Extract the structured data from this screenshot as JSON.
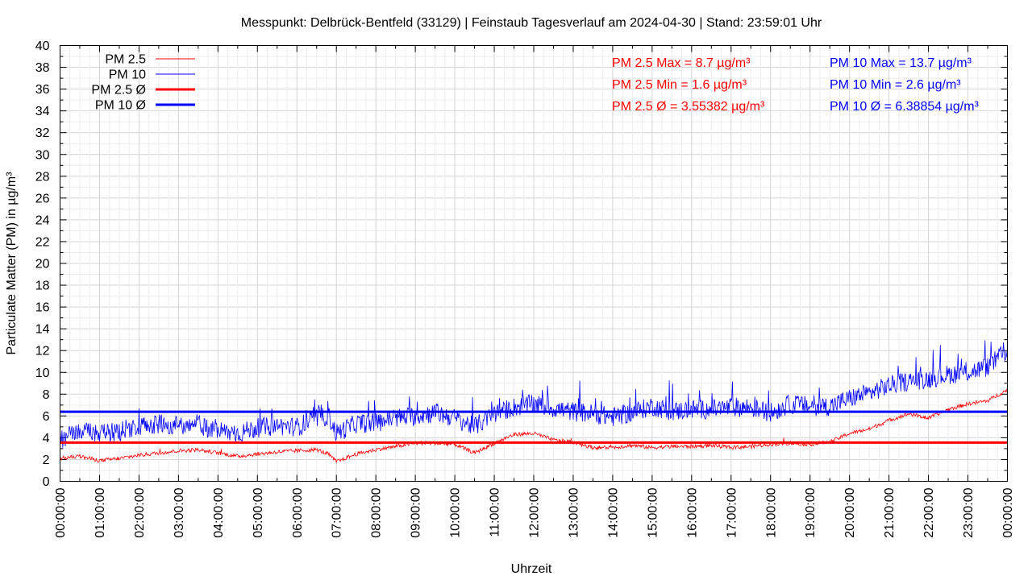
{
  "chart_data": {
    "type": "line",
    "title": "Messpunkt: Delbrück-Bentfeld (33129) | Feinstaub Tagesverlauf am 2024-04-30 | Stand: 23:59:01 Uhr",
    "xlabel": "Uhrzeit",
    "ylabel": "Particulate Matter (PM) in µg/m³",
    "ylim": [
      0,
      40
    ],
    "xlim": [
      "00:00:00",
      "24:00:00"
    ],
    "y_ticks": [
      "0",
      "2",
      "4",
      "6",
      "8",
      "10",
      "12",
      "14",
      "16",
      "18",
      "20",
      "22",
      "24",
      "26",
      "28",
      "30",
      "32",
      "34",
      "36",
      "38",
      "40"
    ],
    "x_ticks": [
      "00:00:00",
      "01:00:00",
      "02:00:00",
      "03:00:00",
      "04:00:00",
      "05:00:00",
      "06:00:00",
      "07:00:00",
      "08:00:00",
      "09:00:00",
      "10:00:00",
      "11:00:00",
      "12:00:00",
      "13:00:00",
      "14:00:00",
      "15:00:00",
      "16:00:00",
      "17:00:00",
      "18:00:00",
      "19:00:00",
      "20:00:00",
      "21:00:00",
      "22:00:00",
      "23:00:00",
      "00:00:00"
    ],
    "grid": true,
    "legend_position": "top-left",
    "legend": [
      {
        "label": "PM 2.5",
        "color": "#ff0000",
        "style": "thin"
      },
      {
        "label": "PM 10",
        "color": "#0000ff",
        "style": "thin"
      },
      {
        "label": "PM 2.5 Ø",
        "color": "#ff0000",
        "style": "thick"
      },
      {
        "label": "PM 10 Ø",
        "color": "#0000ff",
        "style": "thick"
      }
    ],
    "stats": {
      "pm25": {
        "color": "#ff0000",
        "max_text": "PM 2.5 Max = 8.7 µg/m³",
        "min_text": "PM 2.5 Min = 1.6 µg/m³",
        "avg_text": "PM 2.5 Ø = 3.55382 µg/m³"
      },
      "pm10": {
        "color": "#0000ff",
        "max_text": "PM 10 Max = 13.7 µg/m³",
        "min_text": "PM 10 Min = 2.6 µg/m³",
        "avg_text": "PM 10 Ø = 6.38854 µg/m³"
      }
    },
    "series": [
      {
        "name": "PM 2.5",
        "color": "#ff0000",
        "x_hours": [
          0,
          0.5,
          1,
          1.5,
          2,
          2.5,
          3,
          3.5,
          4,
          4.5,
          5,
          5.5,
          6,
          6.5,
          6.8,
          7,
          7.5,
          8,
          8.5,
          9,
          9.5,
          10,
          10.5,
          11,
          11.5,
          12,
          12.5,
          13,
          13.5,
          14,
          14.5,
          15,
          15.5,
          16,
          16.5,
          17,
          17.5,
          18,
          18.5,
          19,
          19.5,
          20,
          20.5,
          21,
          21.5,
          22,
          22.5,
          23,
          23.5,
          24
        ],
        "y": [
          2.1,
          2.3,
          1.9,
          2.1,
          2.4,
          2.6,
          2.8,
          2.9,
          2.6,
          2.3,
          2.5,
          2.7,
          2.8,
          2.9,
          2.5,
          1.8,
          2.5,
          2.9,
          3.2,
          3.5,
          3.5,
          3.4,
          2.6,
          3.5,
          4.3,
          4.4,
          3.8,
          3.6,
          3.1,
          3.1,
          3.3,
          3.1,
          3.2,
          3.2,
          3.3,
          3.1,
          3.2,
          3.4,
          3.5,
          3.4,
          3.6,
          4.4,
          4.8,
          5.6,
          6.2,
          5.8,
          6.6,
          7.1,
          7.4,
          8.4
        ]
      },
      {
        "name": "PM 10",
        "color": "#0000ff",
        "x_hours": [
          0,
          0.5,
          1,
          1.5,
          2,
          2.5,
          3,
          3.5,
          4,
          4.5,
          5,
          5.5,
          6,
          6.5,
          6.8,
          7,
          7.5,
          8,
          8.5,
          9,
          9.5,
          10,
          10.5,
          11,
          11.5,
          12,
          12.5,
          13,
          13.5,
          14,
          14.5,
          15,
          15.5,
          16,
          16.5,
          17,
          17.5,
          18,
          18.5,
          19,
          19.5,
          20,
          20.5,
          21,
          21.5,
          22,
          22.5,
          23,
          23.5,
          24
        ],
        "y": [
          3.8,
          4.6,
          4.3,
          4.6,
          5.1,
          5.3,
          5.1,
          5.2,
          4.6,
          4.4,
          4.9,
          5.1,
          5.0,
          5.8,
          6.0,
          4.4,
          5.3,
          5.4,
          5.8,
          6.0,
          6.3,
          5.8,
          5.0,
          6.2,
          6.8,
          7.1,
          6.7,
          6.4,
          6.2,
          5.9,
          6.3,
          6.9,
          6.4,
          6.6,
          6.6,
          6.8,
          6.8,
          6.3,
          7.1,
          6.9,
          6.9,
          7.6,
          8.1,
          8.8,
          9.2,
          9.4,
          9.8,
          10.0,
          10.5,
          12.0
        ]
      },
      {
        "name": "PM 2.5 Ø",
        "color": "#ff0000",
        "constant": 3.55382
      },
      {
        "name": "PM 10 Ø",
        "color": "#0000ff",
        "constant": 6.38854
      }
    ]
  }
}
